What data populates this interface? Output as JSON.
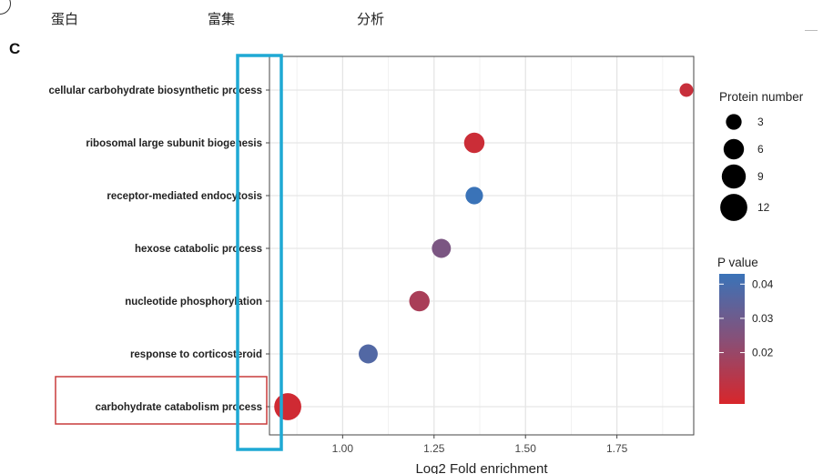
{
  "header": {
    "items": [
      "蛋白",
      "富集",
      "分析"
    ]
  },
  "panel_letter": "C",
  "chart_data": {
    "type": "scatter",
    "title": "",
    "xlabel": "Log2 Fold enrichment",
    "ylabel": "",
    "xlim": [
      0.8,
      1.96
    ],
    "xticks": [
      1.0,
      1.25,
      1.5,
      1.75
    ],
    "xtick_labels": [
      "1.00",
      "1.25",
      "1.50",
      "1.75"
    ],
    "categories": [
      "cellular carbohydrate biosynthetic process",
      "ribosomal large subunit biogenesis",
      "receptor-mediated endocytosis",
      "hexose catabolic process",
      "nucleotide phosphorylation",
      "response to corticosteroid",
      "carbohydrate catabolism process"
    ],
    "points": [
      {
        "category": "cellular carbohydrate biosynthetic process",
        "x": 1.94,
        "protein_number": 2,
        "p_value": 0.009
      },
      {
        "category": "ribosomal large subunit biogenesis",
        "x": 1.36,
        "protein_number": 6,
        "p_value": 0.008
      },
      {
        "category": "receptor-mediated endocytosis",
        "x": 1.36,
        "protein_number": 4,
        "p_value": 0.043
      },
      {
        "category": "hexose catabolic process",
        "x": 1.27,
        "protein_number": 5,
        "p_value": 0.027
      },
      {
        "category": "nucleotide phosphorylation",
        "x": 1.21,
        "protein_number": 6,
        "p_value": 0.016
      },
      {
        "category": "response to corticosteroid",
        "x": 1.07,
        "protein_number": 5,
        "p_value": 0.037
      },
      {
        "category": "carbohydrate catabolism process",
        "x": 0.85,
        "protein_number": 12,
        "p_value": 0.007
      }
    ],
    "grid": true,
    "size_legend": {
      "title": "Protein number",
      "values": [
        3,
        6,
        9,
        12
      ],
      "labels": [
        "3",
        "6",
        "9",
        "12"
      ]
    },
    "color_legend": {
      "title": "P value",
      "range": [
        0.005,
        0.043
      ],
      "ticks": [
        0.02,
        0.03,
        0.04
      ],
      "tick_labels": [
        "0.02",
        "0.03",
        "0.04"
      ],
      "low_color": "#d8262b",
      "high_color": "#3a73b8"
    },
    "legend_placement": "right",
    "highlights": {
      "category_box_color": "#c83b3b",
      "axis_box_color": "#1fa9d4",
      "highlighted_category": "carbohydrate catabolism process"
    }
  }
}
